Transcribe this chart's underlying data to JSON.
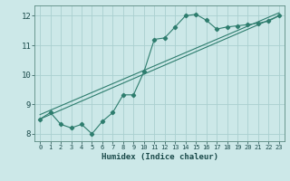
{
  "xlabel": "Humidex (Indice chaleur)",
  "bg_color": "#cce8e8",
  "grid_color": "#aacfcf",
  "line_color": "#2e7d6e",
  "xlim": [
    -0.5,
    23.5
  ],
  "ylim": [
    7.75,
    12.35
  ],
  "xticks": [
    0,
    1,
    2,
    3,
    4,
    5,
    6,
    7,
    8,
    9,
    10,
    11,
    12,
    13,
    14,
    15,
    16,
    17,
    18,
    19,
    20,
    21,
    22,
    23
  ],
  "yticks": [
    8,
    9,
    10,
    11,
    12
  ],
  "series1_x": [
    0,
    1,
    2,
    3,
    4,
    5,
    6,
    7,
    8,
    9,
    10,
    11,
    12,
    13,
    14,
    15,
    16,
    17,
    18,
    19,
    20,
    21,
    22,
    23
  ],
  "series1_y": [
    8.5,
    8.72,
    8.32,
    8.2,
    8.32,
    8.0,
    8.42,
    8.72,
    9.32,
    9.32,
    10.1,
    11.2,
    11.25,
    11.62,
    12.0,
    12.05,
    11.85,
    11.55,
    11.62,
    11.66,
    11.7,
    11.75,
    11.82,
    12.0
  ],
  "series2_x": [
    0,
    23
  ],
  "series2_y": [
    8.5,
    12.0
  ],
  "series3_x": [
    0,
    23
  ],
  "series3_y": [
    8.65,
    12.1
  ]
}
